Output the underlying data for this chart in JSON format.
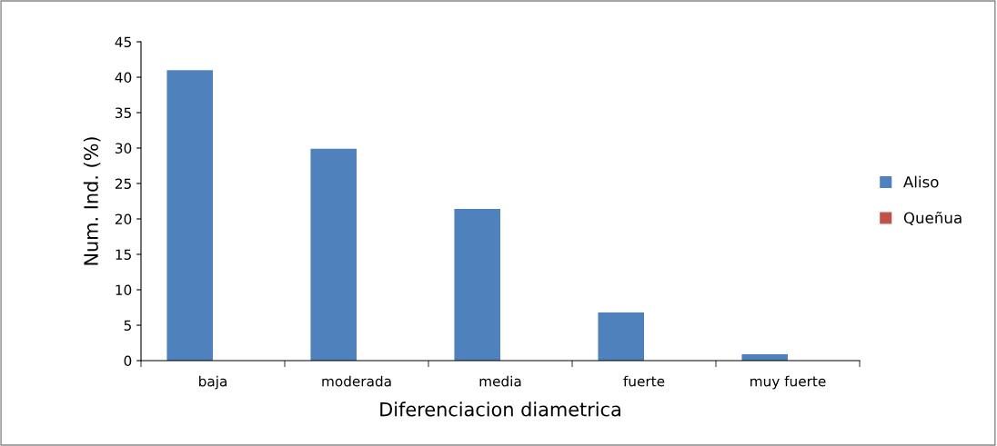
{
  "chart_data": {
    "type": "bar",
    "xlabel": "Diferenciacion diametrica",
    "ylabel": "Num. Ind. (%)",
    "categories": [
      "baja",
      "moderada",
      "media",
      "fuerte",
      "muy fuerte"
    ],
    "series": [
      {
        "name": "Aliso",
        "color": "#4f81bd",
        "values": [
          41.0,
          29.9,
          21.4,
          6.8,
          0.9
        ]
      },
      {
        "name": "Queñua",
        "color": "#c0504d",
        "values": [
          null,
          null,
          null,
          null,
          null
        ]
      }
    ],
    "ylim": [
      0,
      45
    ],
    "yticks": [
      0,
      5,
      10,
      15,
      20,
      25,
      30,
      35,
      40,
      45
    ],
    "grid": false,
    "legend": "right"
  }
}
